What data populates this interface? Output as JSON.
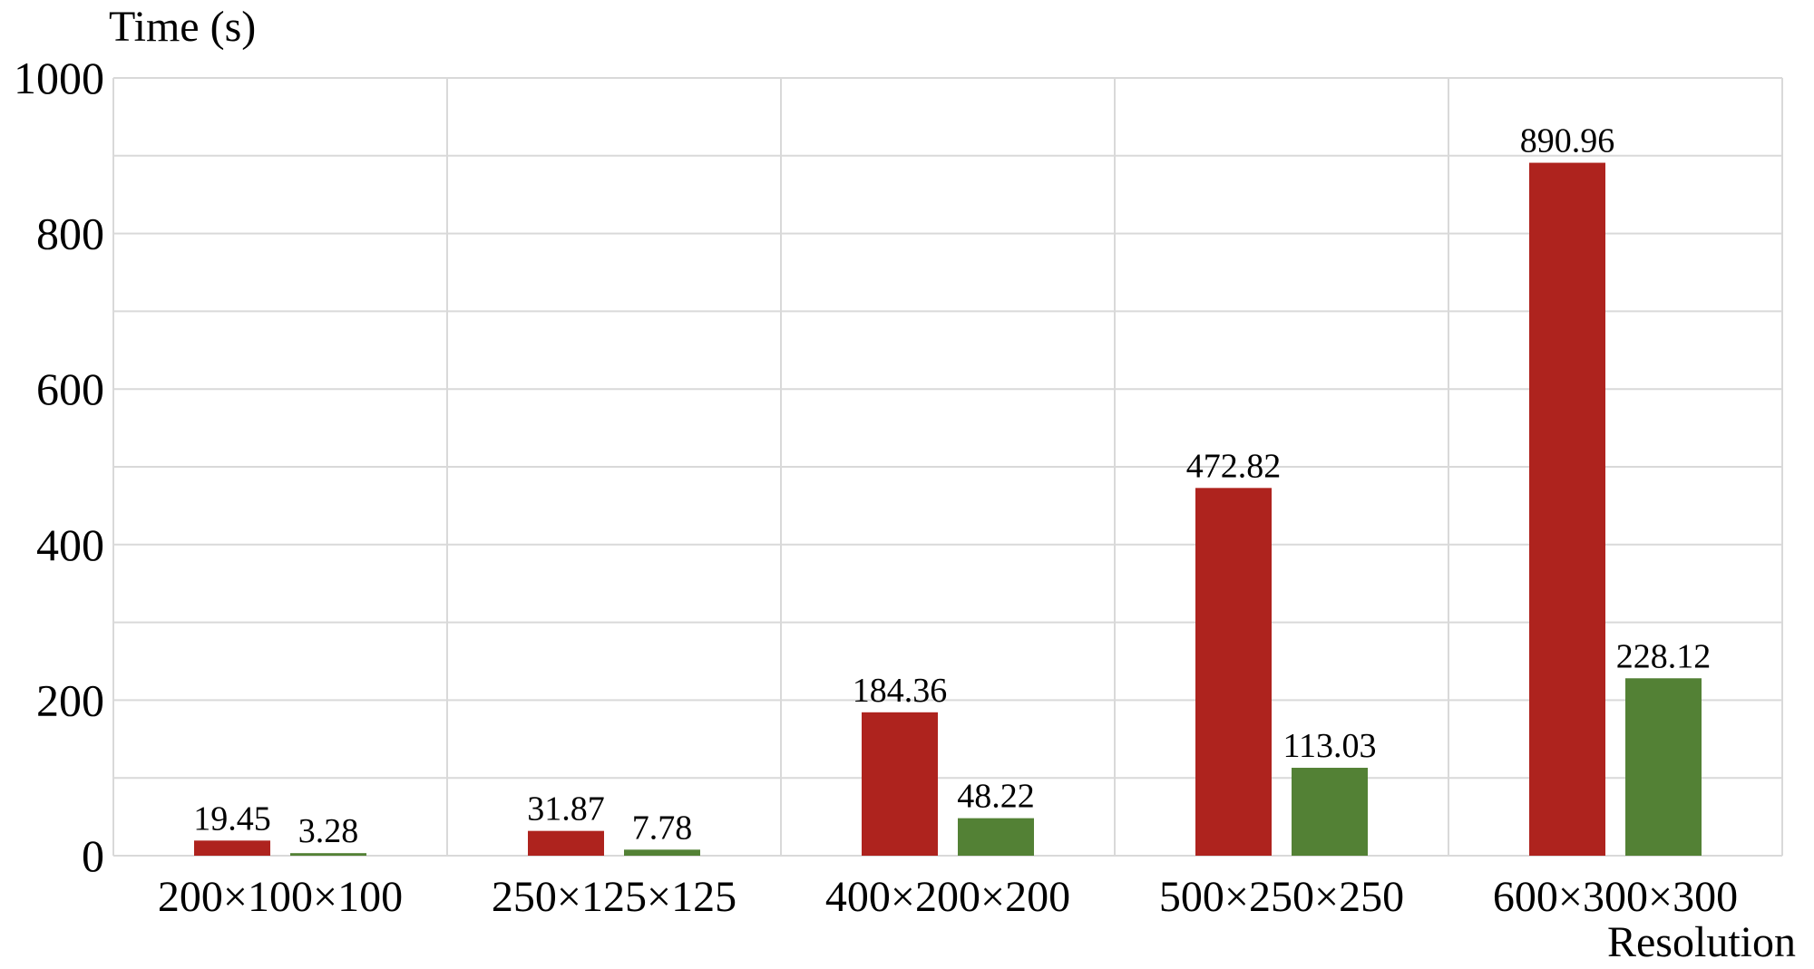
{
  "chart_data": {
    "type": "bar",
    "ylabel": "Time (s)",
    "xlabel": "Resolution",
    "categories": [
      "200×100×100",
      "250×125×125",
      "400×200×200",
      "500×250×250",
      "600×300×300"
    ],
    "series": [
      {
        "values": [
          19.45,
          31.87,
          184.36,
          472.82,
          890.96
        ],
        "color": "#ae231e"
      },
      {
        "values": [
          3.28,
          7.78,
          48.22,
          113.03,
          228.12
        ],
        "color": "#538135"
      }
    ],
    "data_labels": [
      [
        "19.45",
        "31.87",
        "184.36",
        "472.82",
        "890.96"
      ],
      [
        "3.28",
        "7.78",
        "48.22",
        "113.03",
        "228.12"
      ]
    ],
    "ylim": [
      0,
      1000
    ],
    "yticks": [
      "0",
      "200",
      "400",
      "600",
      "800",
      "1000"
    ],
    "grid": true,
    "legend": "none"
  }
}
